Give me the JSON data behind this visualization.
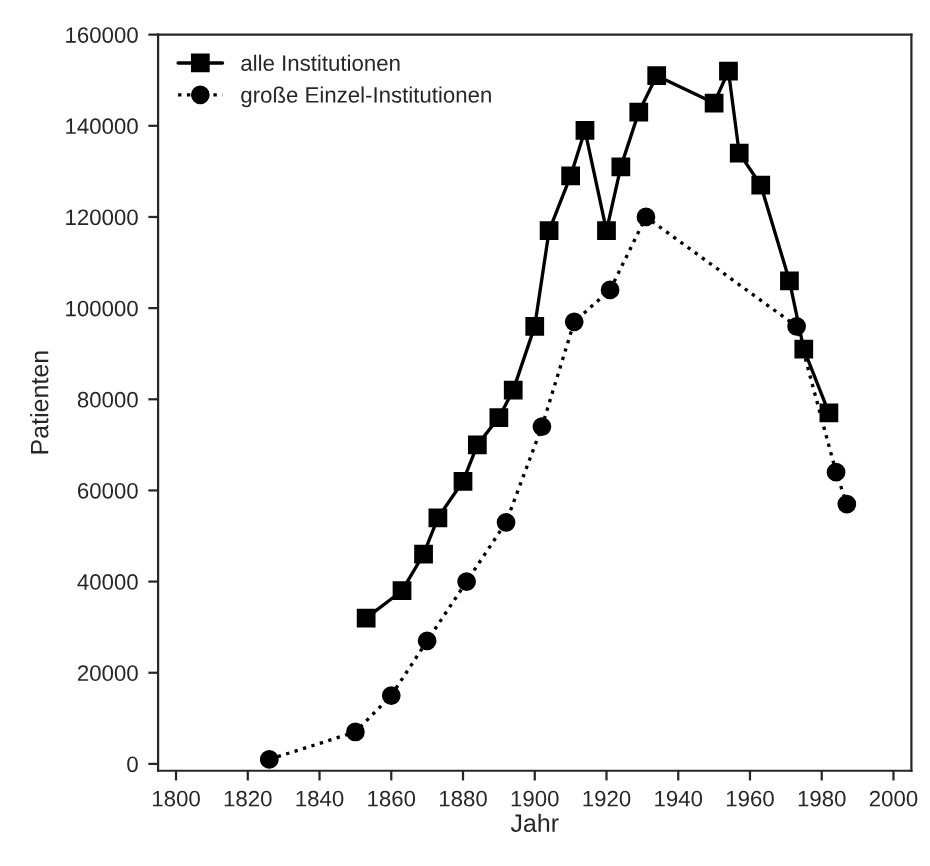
{
  "chart_data": {
    "type": "line",
    "xlabel": "Jahr",
    "ylabel": "Patienten",
    "xlim": [
      1795,
      2005
    ],
    "ylim": [
      -1500,
      160000
    ],
    "xticks": [
      1800,
      1820,
      1840,
      1860,
      1880,
      1900,
      1920,
      1940,
      1960,
      1980,
      2000
    ],
    "yticks": [
      0,
      20000,
      40000,
      60000,
      80000,
      100000,
      120000,
      140000,
      160000
    ],
    "grid": false,
    "legend": "top left",
    "series": [
      {
        "name": "alle Institutionen",
        "color": "#000000",
        "marker": "square",
        "line_style": "solid",
        "x": [
          1853,
          1863,
          1869,
          1873,
          1880,
          1884,
          1890,
          1894,
          1900,
          1904,
          1910,
          1914,
          1920,
          1924,
          1929,
          1934,
          1950,
          1954,
          1957,
          1963,
          1971,
          1975,
          1982
        ],
        "values": [
          32000,
          38000,
          46000,
          54000,
          62000,
          70000,
          76000,
          82000,
          96000,
          117000,
          129000,
          139000,
          117000,
          131000,
          143000,
          151000,
          145000,
          152000,
          134000,
          127000,
          106000,
          91000,
          77000
        ]
      },
      {
        "name": "große Einzel-Institutionen",
        "color": "#000000",
        "marker": "circle",
        "line_style": "dotted",
        "x": [
          1826,
          1850,
          1860,
          1870,
          1881,
          1892,
          1902,
          1911,
          1921,
          1931,
          1973,
          1984,
          1987
        ],
        "values": [
          1000,
          7000,
          15000,
          27000,
          40000,
          53000,
          74000,
          97000,
          104000,
          120000,
          96000,
          64000,
          57000
        ]
      }
    ]
  }
}
